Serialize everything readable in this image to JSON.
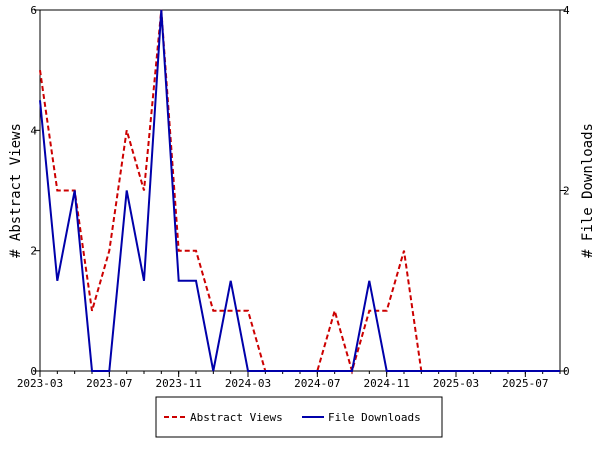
{
  "chart_data": {
    "type": "line",
    "x": [
      "2023-03",
      "2023-04",
      "2023-05",
      "2023-06",
      "2023-07",
      "2023-08",
      "2023-09",
      "2023-10",
      "2023-11",
      "2023-12",
      "2024-01",
      "2024-02",
      "2024-03",
      "2024-04",
      "2024-05",
      "2024-06",
      "2024-07",
      "2024-08",
      "2024-09",
      "2024-10",
      "2024-11",
      "2024-12",
      "2025-01",
      "2025-02",
      "2025-03",
      "2025-04",
      "2025-05",
      "2025-06",
      "2025-07",
      "2025-08",
      "2025-09"
    ],
    "x_tick_labels": [
      "2023-03",
      "2023-07",
      "2023-11",
      "2024-03",
      "2024-07",
      "2024-11",
      "2025-03",
      "2025-07"
    ],
    "series": [
      {
        "name": "Abstract Views",
        "axis": "left",
        "color": "#cc0000",
        "style": "dashed",
        "values": [
          5,
          3,
          3,
          1,
          2,
          4,
          3,
          6,
          2,
          2,
          1,
          1,
          1,
          0,
          0,
          0,
          0,
          1,
          0,
          1,
          1,
          2,
          0,
          0,
          0,
          0,
          0,
          0,
          0,
          0,
          0
        ]
      },
      {
        "name": "File Downloads",
        "axis": "right",
        "color": "#0000aa",
        "style": "solid",
        "values": [
          3,
          1,
          2,
          0,
          0,
          2,
          1,
          4,
          1,
          1,
          0,
          1,
          0,
          0,
          0,
          0,
          0,
          0,
          0,
          1,
          0,
          0,
          0,
          0,
          0,
          0,
          0,
          0,
          0,
          0,
          0
        ]
      }
    ],
    "ylabel": "# Abstract Views",
    "y2label": "# File Downloads",
    "ylim": [
      0,
      6
    ],
    "y2lim": [
      0,
      4
    ],
    "y_ticks": [
      "0",
      "2",
      "4",
      "6"
    ],
    "y2_ticks": [
      "0",
      "2",
      "4"
    ],
    "grid": false,
    "legend_position": "bottom"
  }
}
